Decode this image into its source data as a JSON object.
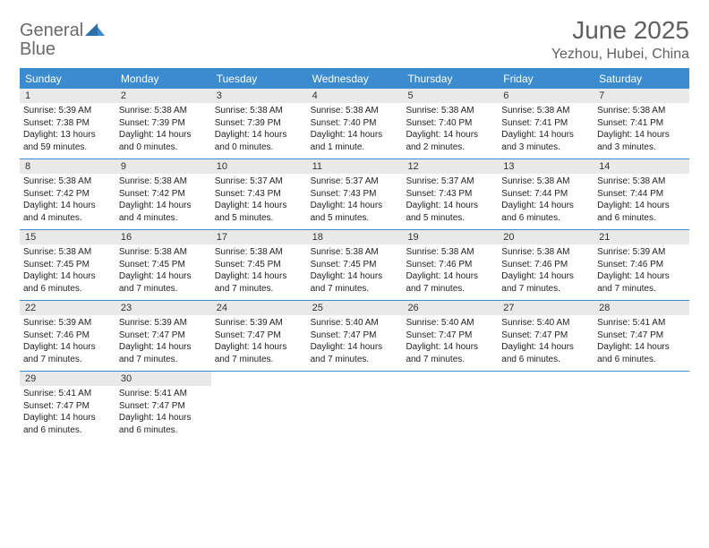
{
  "logo": {
    "text_gray": "General",
    "text_blue": "Blue"
  },
  "header": {
    "month_title": "June 2025",
    "location": "Yezhou, Hubei, China"
  },
  "colors": {
    "accent": "#3b8bd0",
    "header_bg": "#3b8bd0",
    "daynum_bg": "#e9e9e9",
    "rule": "#3b8bd0",
    "text": "#222222",
    "muted": "#5f5f5f"
  },
  "dow": [
    "Sunday",
    "Monday",
    "Tuesday",
    "Wednesday",
    "Thursday",
    "Friday",
    "Saturday"
  ],
  "weeks": [
    [
      {
        "n": "1",
        "sr": "5:39 AM",
        "ss": "7:38 PM",
        "dl": "13 hours and 59 minutes."
      },
      {
        "n": "2",
        "sr": "5:38 AM",
        "ss": "7:39 PM",
        "dl": "14 hours and 0 minutes."
      },
      {
        "n": "3",
        "sr": "5:38 AM",
        "ss": "7:39 PM",
        "dl": "14 hours and 0 minutes."
      },
      {
        "n": "4",
        "sr": "5:38 AM",
        "ss": "7:40 PM",
        "dl": "14 hours and 1 minute."
      },
      {
        "n": "5",
        "sr": "5:38 AM",
        "ss": "7:40 PM",
        "dl": "14 hours and 2 minutes."
      },
      {
        "n": "6",
        "sr": "5:38 AM",
        "ss": "7:41 PM",
        "dl": "14 hours and 3 minutes."
      },
      {
        "n": "7",
        "sr": "5:38 AM",
        "ss": "7:41 PM",
        "dl": "14 hours and 3 minutes."
      }
    ],
    [
      {
        "n": "8",
        "sr": "5:38 AM",
        "ss": "7:42 PM",
        "dl": "14 hours and 4 minutes."
      },
      {
        "n": "9",
        "sr": "5:38 AM",
        "ss": "7:42 PM",
        "dl": "14 hours and 4 minutes."
      },
      {
        "n": "10",
        "sr": "5:37 AM",
        "ss": "7:43 PM",
        "dl": "14 hours and 5 minutes."
      },
      {
        "n": "11",
        "sr": "5:37 AM",
        "ss": "7:43 PM",
        "dl": "14 hours and 5 minutes."
      },
      {
        "n": "12",
        "sr": "5:37 AM",
        "ss": "7:43 PM",
        "dl": "14 hours and 5 minutes."
      },
      {
        "n": "13",
        "sr": "5:38 AM",
        "ss": "7:44 PM",
        "dl": "14 hours and 6 minutes."
      },
      {
        "n": "14",
        "sr": "5:38 AM",
        "ss": "7:44 PM",
        "dl": "14 hours and 6 minutes."
      }
    ],
    [
      {
        "n": "15",
        "sr": "5:38 AM",
        "ss": "7:45 PM",
        "dl": "14 hours and 6 minutes."
      },
      {
        "n": "16",
        "sr": "5:38 AM",
        "ss": "7:45 PM",
        "dl": "14 hours and 7 minutes."
      },
      {
        "n": "17",
        "sr": "5:38 AM",
        "ss": "7:45 PM",
        "dl": "14 hours and 7 minutes."
      },
      {
        "n": "18",
        "sr": "5:38 AM",
        "ss": "7:45 PM",
        "dl": "14 hours and 7 minutes."
      },
      {
        "n": "19",
        "sr": "5:38 AM",
        "ss": "7:46 PM",
        "dl": "14 hours and 7 minutes."
      },
      {
        "n": "20",
        "sr": "5:38 AM",
        "ss": "7:46 PM",
        "dl": "14 hours and 7 minutes."
      },
      {
        "n": "21",
        "sr": "5:39 AM",
        "ss": "7:46 PM",
        "dl": "14 hours and 7 minutes."
      }
    ],
    [
      {
        "n": "22",
        "sr": "5:39 AM",
        "ss": "7:46 PM",
        "dl": "14 hours and 7 minutes."
      },
      {
        "n": "23",
        "sr": "5:39 AM",
        "ss": "7:47 PM",
        "dl": "14 hours and 7 minutes."
      },
      {
        "n": "24",
        "sr": "5:39 AM",
        "ss": "7:47 PM",
        "dl": "14 hours and 7 minutes."
      },
      {
        "n": "25",
        "sr": "5:40 AM",
        "ss": "7:47 PM",
        "dl": "14 hours and 7 minutes."
      },
      {
        "n": "26",
        "sr": "5:40 AM",
        "ss": "7:47 PM",
        "dl": "14 hours and 7 minutes."
      },
      {
        "n": "27",
        "sr": "5:40 AM",
        "ss": "7:47 PM",
        "dl": "14 hours and 6 minutes."
      },
      {
        "n": "28",
        "sr": "5:41 AM",
        "ss": "7:47 PM",
        "dl": "14 hours and 6 minutes."
      }
    ],
    [
      {
        "n": "29",
        "sr": "5:41 AM",
        "ss": "7:47 PM",
        "dl": "14 hours and 6 minutes."
      },
      {
        "n": "30",
        "sr": "5:41 AM",
        "ss": "7:47 PM",
        "dl": "14 hours and 6 minutes."
      },
      null,
      null,
      null,
      null,
      null
    ]
  ],
  "labels": {
    "sunrise": "Sunrise: ",
    "sunset": "Sunset: ",
    "daylight": "Daylight: "
  }
}
